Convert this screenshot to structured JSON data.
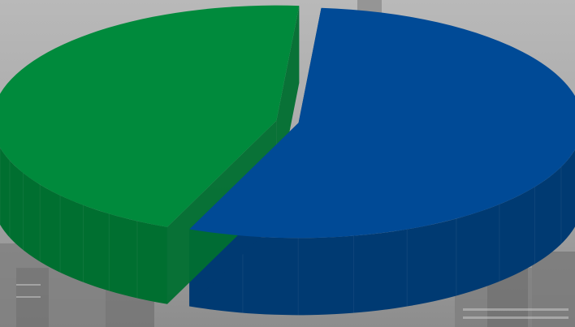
{
  "chart_data": {
    "type": "pie",
    "style": "3d-exploded",
    "title": "",
    "legend": "none",
    "data_labels": "none",
    "slices": [
      {
        "value": 55,
        "color": "#004a96",
        "side_color": "#003a72"
      },
      {
        "value": 45,
        "color": "#008a3c",
        "side_color": "#006f30"
      }
    ]
  },
  "background": {
    "description_free": true,
    "tone": "#9b9b9b"
  }
}
